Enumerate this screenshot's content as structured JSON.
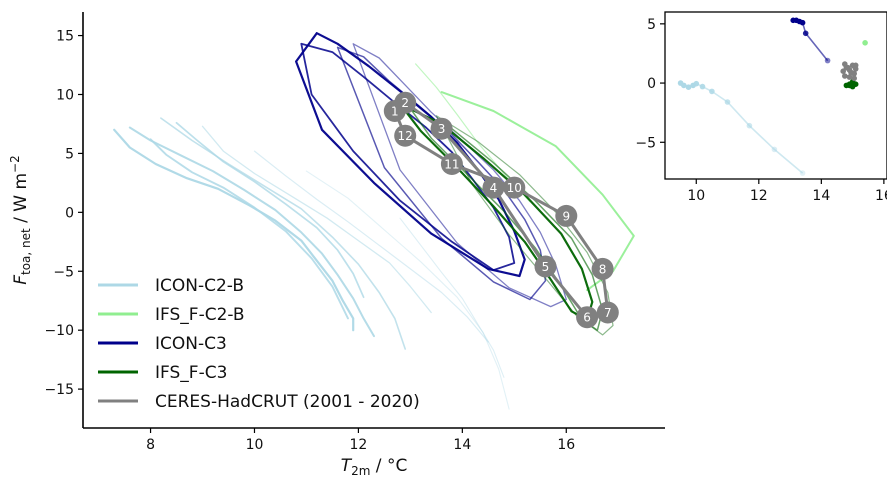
{
  "chart_data": [
    {
      "id": "main",
      "type": "line",
      "xlabel_main": "T",
      "xlabel_sub": "2m",
      "xlabel_unit": " / °C",
      "ylabel_main": "F",
      "ylabel_sub": "toa, net",
      "ylabel_unit": " / W m",
      "ylabel_sup": "−2",
      "xlim": [
        6.7,
        17.9
      ],
      "ylim": [
        -18.3,
        17
      ],
      "xticks": [
        8,
        10,
        12,
        14,
        16
      ],
      "yticks": [
        -15,
        -10,
        -5,
        0,
        5,
        10,
        15
      ],
      "legend_position": "lower-left",
      "legend": [
        {
          "label": "ICON-C2-B",
          "color": "#add8e6"
        },
        {
          "label": "IFS_F-C2-B",
          "color": "#90ee90"
        },
        {
          "label": "ICON-C3",
          "color": "#00008b"
        },
        {
          "label": "IFS_F-C3",
          "color": "#006400"
        },
        {
          "label": "CERES-HadCRUT (2001 - 2020)",
          "color": "#808080"
        }
      ],
      "series": [
        {
          "name": "ICON-C2-B",
          "color": "#add8e6",
          "width": 2.2,
          "opacity": 0.95,
          "x": [
            7.3,
            7.6,
            8.1,
            8.7,
            9.3,
            9.9,
            10.4,
            10.9,
            11.2,
            11.5,
            11.7,
            11.9,
            11.9
          ],
          "y": [
            7.0,
            5.5,
            4.1,
            2.9,
            2.0,
            0.6,
            -0.7,
            -2.4,
            -4.1,
            -5.8,
            -7.5,
            -9.0,
            -10.0
          ]
        },
        {
          "name": "ICON-C2-B",
          "color": "#add8e6",
          "width": 2.0,
          "opacity": 0.9,
          "x": [
            7.6,
            8.0,
            8.6,
            9.2,
            9.8,
            10.4,
            10.9,
            11.3,
            11.6,
            11.9,
            12.1,
            12.3
          ],
          "y": [
            7.2,
            6.1,
            4.8,
            3.5,
            1.9,
            0.2,
            -1.7,
            -3.5,
            -5.3,
            -7.3,
            -9.0,
            -10.5
          ]
        },
        {
          "name": "ICON-C2-B",
          "color": "#add8e6",
          "width": 1.9,
          "opacity": 0.85,
          "x": [
            8.0,
            8.3,
            8.8,
            9.4,
            10.0,
            10.6,
            11.1,
            11.5,
            11.8
          ],
          "y": [
            6.2,
            4.9,
            3.4,
            2.1,
            0.4,
            -1.6,
            -3.9,
            -6.3,
            -9.0
          ]
        },
        {
          "name": "ICON-C2-B",
          "color": "#add8e6",
          "width": 1.7,
          "opacity": 0.8,
          "x": [
            8.5,
            8.9,
            9.4,
            10.0,
            10.6,
            11.2,
            11.6,
            11.9,
            12.1
          ],
          "y": [
            7.6,
            6.1,
            4.3,
            2.6,
            0.7,
            -1.3,
            -3.2,
            -5.2,
            -7.2
          ]
        },
        {
          "name": "ICON-C2-B",
          "color": "#add8e6",
          "width": 1.6,
          "opacity": 0.75,
          "x": [
            8.2,
            8.8,
            9.5,
            10.2,
            10.9,
            11.5,
            12.0,
            12.4,
            12.7,
            12.9
          ],
          "y": [
            8.0,
            6.1,
            4.1,
            2.2,
            0.3,
            -2.1,
            -4.4,
            -6.8,
            -9.0,
            -11.6
          ]
        },
        {
          "name": "ICON-C2-B",
          "color": "#add8e6",
          "width": 1.3,
          "opacity": 0.55,
          "x": [
            9.0,
            9.4,
            10.0,
            10.7,
            11.4,
            12.0,
            12.6,
            13.0,
            13.4
          ],
          "y": [
            7.3,
            5.2,
            3.3,
            1.4,
            -0.5,
            -2.4,
            -4.3,
            -6.3,
            -8.5
          ]
        },
        {
          "name": "ICON-C2-B",
          "color": "#add8e6",
          "width": 1.2,
          "opacity": 0.45,
          "x": [
            10.0,
            10.6,
            11.2,
            11.8,
            12.4,
            13.0,
            13.6,
            14.1,
            14.5
          ],
          "y": [
            5.2,
            3.1,
            1.1,
            -0.8,
            -2.8,
            -4.8,
            -6.8,
            -8.9,
            -11.0
          ]
        },
        {
          "name": "ICON-C2-B",
          "color": "#add8e6",
          "width": 1.1,
          "opacity": 0.35,
          "x": [
            11.0,
            11.8,
            12.5,
            13.2,
            13.9,
            14.4,
            14.7,
            14.9
          ],
          "y": [
            3.5,
            1.2,
            -1.5,
            -4.2,
            -7.2,
            -10.2,
            -13.3,
            -16.7
          ]
        },
        {
          "name": "ICON-C2-B",
          "color": "#add8e6",
          "width": 1.1,
          "opacity": 0.4,
          "x": [
            12.8,
            13.2,
            13.6,
            14.0,
            14.3,
            14.6,
            14.8
          ],
          "y": [
            -0.5,
            -2.8,
            -5.1,
            -7.3,
            -9.5,
            -11.7,
            -14.0
          ]
        },
        {
          "name": "IFS_F-C2-B",
          "color": "#90ee90",
          "width": 1.2,
          "opacity": 0.55,
          "x": [
            13.1,
            13.5,
            13.9,
            14.3,
            14.8,
            15.3
          ],
          "y": [
            12.6,
            10.6,
            8.3,
            5.9,
            3.3,
            0.9
          ]
        },
        {
          "name": "IFS_F-C2-B",
          "color": "#90ee90",
          "width": 2.0,
          "opacity": 0.9,
          "x": [
            13.6,
            14.6,
            15.8,
            16.7,
            17.3,
            16.9,
            16.4
          ],
          "y": [
            10.2,
            8.6,
            5.6,
            1.5,
            -2.0,
            -5.0,
            -6.6
          ]
        },
        {
          "name": "ICON-C3",
          "color": "#00008b",
          "width": 2.2,
          "opacity": 0.95,
          "x": [
            11.2,
            11.6,
            12.2,
            12.8,
            13.4,
            13.9,
            14.3,
            14.7,
            15.0,
            15.2,
            15.1,
            14.5,
            13.4,
            12.3,
            11.3,
            10.8,
            11.2
          ],
          "y": [
            15.2,
            14.3,
            12.4,
            10.3,
            8.1,
            5.9,
            3.6,
            1.1,
            -1.6,
            -4.0,
            -5.4,
            -4.8,
            -1.8,
            2.5,
            7.0,
            12.8,
            15.2
          ]
        },
        {
          "name": "ICON-C3",
          "color": "#00008b",
          "width": 1.8,
          "opacity": 0.85,
          "x": [
            10.9,
            11.5,
            12.1,
            12.7,
            13.3,
            13.8,
            14.2,
            14.6,
            14.9,
            15.0,
            14.6,
            13.8,
            12.8,
            11.9,
            11.1,
            10.9
          ],
          "y": [
            14.3,
            13.6,
            11.5,
            9.3,
            7.2,
            5.1,
            2.8,
            0.4,
            -2.1,
            -4.3,
            -4.9,
            -2.5,
            1.0,
            5.2,
            10.0,
            14.3
          ]
        },
        {
          "name": "ICON-C3",
          "color": "#00008b",
          "width": 1.5,
          "opacity": 0.65,
          "x": [
            11.6,
            12.1,
            12.6,
            13.2,
            13.8,
            14.3,
            14.8,
            15.2,
            15.5,
            15.6,
            15.3,
            14.6,
            13.6,
            12.5,
            11.6
          ],
          "y": [
            14.0,
            13.2,
            11.1,
            8.9,
            6.6,
            4.3,
            1.9,
            -0.6,
            -3.2,
            -5.8,
            -7.4,
            -5.9,
            -2.2,
            3.8,
            14.0
          ]
        },
        {
          "name": "ICON-C3",
          "color": "#00008b",
          "width": 1.3,
          "opacity": 0.5,
          "x": [
            11.9,
            12.4,
            12.9,
            13.4,
            14.0,
            14.6,
            15.1,
            15.5,
            15.8,
            16.0,
            15.7,
            14.9,
            13.9,
            12.8,
            11.9
          ],
          "y": [
            14.3,
            13.1,
            10.8,
            8.5,
            6.1,
            3.6,
            1.0,
            -1.7,
            -4.5,
            -7.4,
            -8.0,
            -6.4,
            -2.6,
            3.6,
            14.3
          ]
        },
        {
          "name": "IFS_F-C3",
          "color": "#006400",
          "width": 2.2,
          "opacity": 0.95,
          "x": [
            12.8,
            13.6,
            14.4,
            15.2,
            15.9,
            16.3,
            16.5,
            16.4,
            16.1,
            15.7,
            15.2,
            14.6,
            13.9,
            13.2,
            12.8
          ],
          "y": [
            9.2,
            7.5,
            4.6,
            1.5,
            -1.8,
            -4.8,
            -7.6,
            -9.1,
            -8.4,
            -5.7,
            -2.5,
            0.5,
            3.8,
            6.9,
            9.2
          ]
        },
        {
          "name": "IFS_F-C3",
          "color": "#006400",
          "width": 1.5,
          "opacity": 0.6,
          "x": [
            13.0,
            13.8,
            14.6,
            15.4,
            16.1,
            16.5,
            16.7,
            16.6,
            16.3,
            15.9,
            15.4,
            14.8,
            14.1,
            13.4,
            13.0
          ],
          "y": [
            8.8,
            7.1,
            4.2,
            1.0,
            -2.2,
            -5.3,
            -8.3,
            -10.0,
            -9.1,
            -6.2,
            -3.0,
            0.1,
            3.2,
            6.3,
            8.8
          ]
        },
        {
          "name": "IFS_F-C3",
          "color": "#006400",
          "width": 1.2,
          "opacity": 0.45,
          "x": [
            13.5,
            14.3,
            15.1,
            15.8,
            16.4,
            16.8,
            16.9,
            16.7,
            16.2,
            15.6,
            14.9,
            14.2,
            13.5
          ],
          "y": [
            8.2,
            6.0,
            3.2,
            0.0,
            -3.4,
            -6.8,
            -9.6,
            -10.4,
            -8.8,
            -5.6,
            -1.9,
            2.3,
            8.2
          ]
        }
      ],
      "months": {
        "name": "CERES-HadCRUT (2001 - 2020)",
        "color": "#808080",
        "labels": [
          "1",
          "2",
          "3",
          "4",
          "5",
          "6",
          "7",
          "8",
          "9",
          "10",
          "11",
          "12"
        ],
        "x": [
          12.7,
          12.9,
          13.6,
          14.6,
          15.6,
          16.4,
          16.8,
          16.7,
          16.0,
          15.0,
          13.8,
          12.9
        ],
        "y": [
          8.6,
          9.3,
          7.1,
          2.1,
          -4.6,
          -8.9,
          -8.5,
          -4.8,
          -0.3,
          2.1,
          4.1,
          6.5
        ]
      }
    },
    {
      "id": "inset",
      "type": "line",
      "xlim": [
        9.0,
        16.1
      ],
      "ylim": [
        -8.1,
        6
      ],
      "xticks": [
        10,
        12,
        14,
        16
      ],
      "yticks": [
        -5,
        0,
        5
      ],
      "series": [
        {
          "name": "ICON-C2-B",
          "color": "#add8e6",
          "x": [
            9.5,
            9.6,
            9.75,
            9.9,
            10.0,
            10.2,
            10.5,
            11.0,
            11.7,
            12.5,
            13.4
          ],
          "y": [
            0.0,
            -0.2,
            -0.35,
            -0.2,
            -0.05,
            -0.3,
            -0.7,
            -1.6,
            -3.6,
            -5.6,
            -7.6
          ],
          "alpha": [
            1.0,
            1.0,
            1.0,
            1.0,
            0.95,
            0.9,
            0.85,
            0.75,
            0.6,
            0.45,
            0.35
          ]
        },
        {
          "name": "IFS_F-C2-B",
          "color": "#90ee90",
          "x": [
            15.4
          ],
          "y": [
            3.4
          ],
          "alpha": [
            1.0
          ]
        },
        {
          "name": "ICON-C3",
          "color": "#00008b",
          "x": [
            13.1,
            13.2,
            13.3,
            13.4,
            13.5,
            14.2
          ],
          "y": [
            5.3,
            5.3,
            5.2,
            5.1,
            4.2,
            1.9
          ],
          "alpha": [
            1.0,
            1.0,
            1.0,
            1.0,
            0.85,
            0.5
          ]
        },
        {
          "name": "IFS_F-C3",
          "color": "#006400",
          "x": [
            14.8,
            14.9,
            15.0,
            15.1,
            15.0,
            14.9
          ],
          "y": [
            -0.2,
            -0.1,
            -0.3,
            -0.1,
            0.1,
            -0.2
          ],
          "alpha": [
            1.0,
            1.0,
            1.0,
            1.0,
            1.0,
            1.0
          ]
        },
        {
          "name": "CERES-HadCRUT (2001 - 2020)",
          "color": "#808080",
          "x": [
            14.75,
            14.85,
            15.0,
            15.1,
            15.05,
            14.9,
            14.75,
            14.7,
            14.8,
            14.95,
            15.05,
            15.1,
            14.9
          ],
          "y": [
            1.6,
            1.3,
            1.5,
            1.2,
            0.8,
            0.5,
            0.6,
            1.0,
            1.3,
            0.9,
            0.4,
            1.5,
            1.1
          ],
          "alpha": [
            1.0,
            1.0,
            1.0,
            1.0,
            1.0,
            1.0,
            1.0,
            1.0,
            1.0,
            1.0,
            1.0,
            1.0,
            1.0
          ]
        }
      ]
    }
  ]
}
